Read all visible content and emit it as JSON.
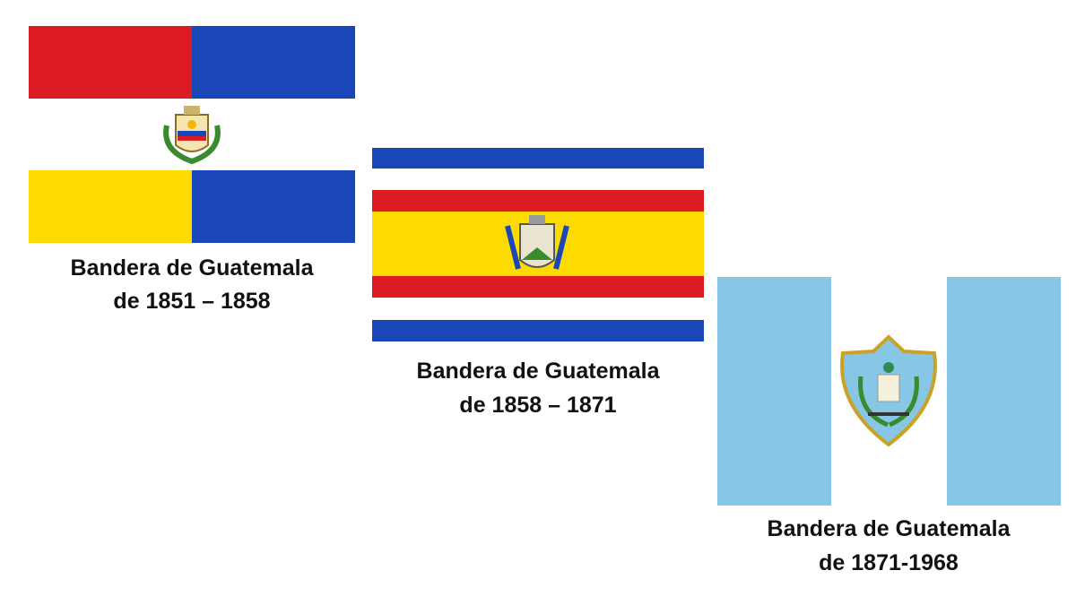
{
  "flags": [
    {
      "caption_lines": [
        "Bandera de Guatemala",
        "de 1851 – 1858"
      ]
    },
    {
      "caption_lines": [
        "Bandera de Guatemala",
        "de 1858 – 1871"
      ]
    },
    {
      "caption_lines": [
        "Bandera de Guatemala",
        "de 1871-1968"
      ]
    }
  ]
}
